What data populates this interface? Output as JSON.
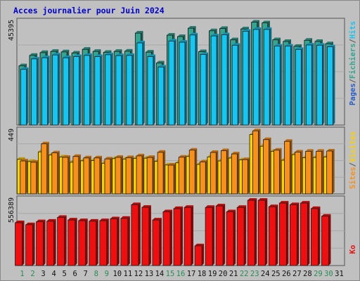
{
  "chart_data": {
    "type": "bar",
    "title": "Acces journalier pour Juin 2024",
    "categories": [
      "1",
      "2",
      "3",
      "4",
      "5",
      "6",
      "7",
      "8",
      "9",
      "10",
      "11",
      "12",
      "13",
      "14",
      "15",
      "16",
      "17",
      "18",
      "19",
      "20",
      "21",
      "22",
      "23",
      "24",
      "25",
      "26",
      "27",
      "28",
      "29",
      "30",
      "31"
    ],
    "weekend_days": [
      "1",
      "2",
      "8",
      "9",
      "15",
      "16",
      "22",
      "23",
      "29",
      "30"
    ],
    "panels": [
      {
        "name": "pages_fichiers_hits",
        "max_label": "45395",
        "ymax": 45395,
        "series": [
          {
            "name": "Pages",
            "color": "#2a5cc8",
            "values": [
              25500,
              30000,
              31200,
              31700,
              31500,
              31000,
              32600,
              31700,
              31300,
              31700,
              31800,
              39600,
              31400,
              26700,
              38700,
              38100,
              41700,
              31600,
              40600,
              41600,
              36700,
              41400,
              44300,
              44000,
              36700,
              36000,
              33900,
              36500,
              36000,
              35000,
              0
            ]
          },
          {
            "name": "Fichiers",
            "color": "#35a590",
            "values": [
              25500,
              30000,
              31200,
              31700,
              31500,
              31000,
              32600,
              31700,
              31300,
              31700,
              31800,
              39600,
              31400,
              26700,
              38700,
              38100,
              41700,
              31600,
              40600,
              41600,
              36700,
              41400,
              44300,
              44000,
              36700,
              36000,
              33900,
              36500,
              36000,
              35000,
              0
            ]
          },
          {
            "name": "Hits",
            "color": "#18c4f0",
            "values": [
              24000,
              28500,
              29000,
              30200,
              29000,
              29500,
              30000,
              29500,
              30300,
              29900,
              30000,
              35400,
              29500,
              25000,
              36200,
              35700,
              38800,
              30400,
              38400,
              38900,
              34400,
              40400,
              41200,
              41200,
              34000,
              34000,
              32600,
              34500,
              34400,
              33700,
              0
            ]
          }
        ]
      },
      {
        "name": "visites_sites",
        "max_label": "449",
        "ymax": 449,
        "series": [
          {
            "name": "Visites",
            "color": "#f8d008",
            "values": [
              240,
              225,
              292,
              270,
              256,
              220,
              230,
              232,
              213,
              245,
              242,
              247,
              248,
              226,
              201,
              216,
              260,
              205,
              257,
              229,
              249,
              236,
              412,
              331,
              296,
              234,
              273,
              251,
              253,
              256,
              0
            ]
          },
          {
            "name": "Sites",
            "color": "#f8901c",
            "values": [
              229,
              220,
              348,
              285,
              254,
              260,
              250,
              250,
              243,
              254,
              252,
              264,
              253,
              289,
              200,
              255,
              304,
              222,
              288,
              300,
              278,
              238,
              438,
              377,
              304,
              365,
              291,
              296,
              296,
              298,
              0
            ]
          }
        ]
      },
      {
        "name": "ko",
        "max_label": "556389",
        "ymax": 556389,
        "series": [
          {
            "name": "Ko",
            "color": "#ee1010",
            "values": [
              365000,
              348000,
              373000,
              378000,
              410000,
              388000,
              382000,
              378000,
              382000,
              398000,
              402000,
              518000,
              496000,
              388000,
              458000,
              485000,
              495000,
              168000,
              495000,
              508000,
              458000,
              495000,
              556000,
              556000,
              501000,
              532000,
              518000,
              532000,
              485000,
              420000,
              0
            ]
          }
        ]
      }
    ],
    "legend_right": {
      "top": [
        {
          "text": "Pages",
          "color": "#2a5cc8"
        },
        {
          "text": "/",
          "color": "#555555"
        },
        {
          "text": "Fichiers",
          "color": "#35a590"
        },
        {
          "text": "/",
          "color": "#555555"
        },
        {
          "text": "Hits",
          "color": "#18c4f0"
        }
      ],
      "middle": [
        {
          "text": "Sites",
          "color": "#f8901c"
        },
        {
          "text": "/",
          "color": "#555555"
        },
        {
          "text": "Visites",
          "color": "#f8d008"
        }
      ],
      "bottom": [
        {
          "text": "Ko",
          "color": "#ee1010"
        }
      ]
    },
    "colors": {
      "background": "#c0c0c0",
      "title": "#0000cc",
      "weekday_label": "#111111",
      "weekend_label": "#2a8c58"
    }
  }
}
